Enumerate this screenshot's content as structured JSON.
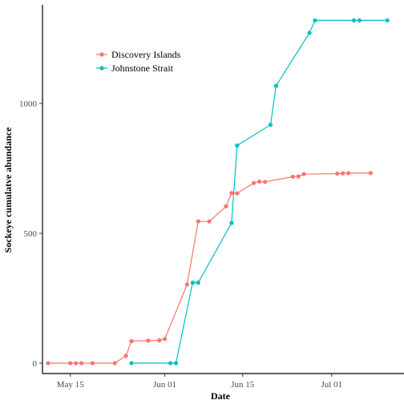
{
  "chart_data": {
    "type": "line",
    "xlabel": "Date",
    "ylabel": "Sockeye cumulatve abundance",
    "x_ticks": [
      "May 15",
      "Jun 01",
      "Jun 15",
      "Jul 01"
    ],
    "y_ticks": [
      0,
      500,
      1000
    ],
    "xlim": [
      "2022-05-10",
      "2022-07-14"
    ],
    "ylim": [
      -40,
      1380
    ],
    "grid": false,
    "legend_position": "top-left",
    "series": [
      {
        "name": "Discovery Islands",
        "color": "#F8766D",
        "points": [
          [
            "2022-05-11",
            0
          ],
          [
            "2022-05-15",
            0
          ],
          [
            "2022-05-16",
            0
          ],
          [
            "2022-05-17",
            0
          ],
          [
            "2022-05-19",
            0
          ],
          [
            "2022-05-23",
            0
          ],
          [
            "2022-05-25",
            28
          ],
          [
            "2022-05-26",
            85
          ],
          [
            "2022-05-29",
            87
          ],
          [
            "2022-05-31",
            88
          ],
          [
            "2022-06-01",
            93
          ],
          [
            "2022-06-05",
            303
          ],
          [
            "2022-06-07",
            546
          ],
          [
            "2022-06-09",
            546
          ],
          [
            "2022-06-12",
            604
          ],
          [
            "2022-06-13",
            655
          ],
          [
            "2022-06-14",
            654
          ],
          [
            "2022-06-17",
            694
          ],
          [
            "2022-06-18",
            699
          ],
          [
            "2022-06-19",
            698
          ],
          [
            "2022-06-24",
            718
          ],
          [
            "2022-06-25",
            719
          ],
          [
            "2022-06-26",
            728
          ],
          [
            "2022-07-02",
            730
          ],
          [
            "2022-07-03",
            731
          ],
          [
            "2022-07-04",
            732
          ],
          [
            "2022-07-08",
            732
          ]
        ]
      },
      {
        "name": "Johnstone Strait",
        "color": "#00BFC4",
        "points": [
          [
            "2022-05-26",
            0
          ],
          [
            "2022-06-02",
            0
          ],
          [
            "2022-06-03",
            0
          ],
          [
            "2022-06-06",
            310
          ],
          [
            "2022-06-07",
            310
          ],
          [
            "2022-06-13",
            540
          ],
          [
            "2022-06-14",
            838
          ],
          [
            "2022-06-20",
            918
          ],
          [
            "2022-06-21",
            1068
          ],
          [
            "2022-06-27",
            1272
          ],
          [
            "2022-06-28",
            1320
          ],
          [
            "2022-07-05",
            1320
          ],
          [
            "2022-07-06",
            1320
          ],
          [
            "2022-07-11",
            1320
          ]
        ]
      }
    ]
  }
}
